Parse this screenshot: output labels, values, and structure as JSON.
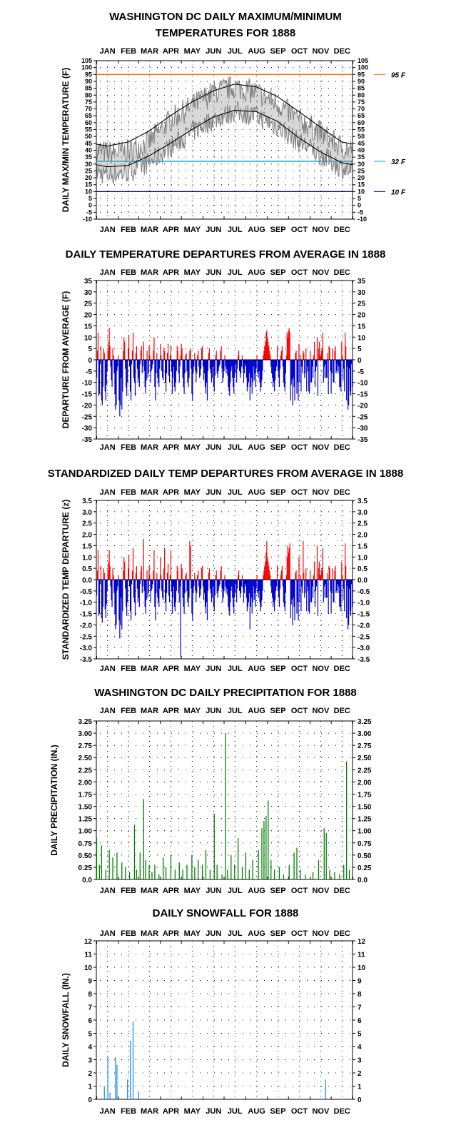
{
  "colors": {
    "positive": "#ff0000",
    "negative": "#0000cc",
    "precip": "#008000",
    "snow": "#1e90ff",
    "daily_temp": "#808080",
    "normals": "#000000",
    "ref95": "#ff6600",
    "ref32": "#00a0d0",
    "ref10": "#0000aa"
  },
  "chart_data": [
    {
      "id": "temp",
      "type": "line",
      "title": "WASHINGTON DC DAILY MAXIMUM/MINIMUM TEMPERATURES FOR 1888",
      "title_lines": [
        "WASHINGTON DC DAILY MAXIMUM/MINIMUM",
        "TEMPERATURES FOR 1888"
      ],
      "ylabel": "DAILY MAX/MIN TEMPERATURE (F)",
      "months": [
        "JAN",
        "FEB",
        "MAR",
        "APR",
        "MAY",
        "JUN",
        "JUL",
        "AUG",
        "SEP",
        "OCT",
        "NOV",
        "DEC"
      ],
      "ylim": [
        -10,
        105
      ],
      "yticks": [
        -10,
        -5,
        0,
        5,
        10,
        15,
        20,
        25,
        30,
        35,
        40,
        45,
        50,
        55,
        60,
        65,
        70,
        75,
        80,
        85,
        90,
        95,
        100,
        105
      ],
      "grid": true,
      "reference_lines": [
        {
          "value": 95,
          "label": "95 F"
        },
        {
          "value": 32,
          "label": "32 F"
        },
        {
          "value": 10,
          "label": "10 F"
        }
      ],
      "normal_max_monthly": [
        43,
        46,
        54,
        65,
        75,
        83,
        88,
        86,
        79,
        68,
        57,
        46
      ],
      "normal_min_monthly": [
        28,
        29,
        36,
        45,
        55,
        64,
        69,
        68,
        61,
        49,
        39,
        31
      ],
      "daily_high_monthly": [
        38,
        39,
        46,
        62,
        72,
        82,
        86,
        82,
        74,
        62,
        53,
        42
      ],
      "daily_low_monthly": [
        22,
        24,
        31,
        42,
        53,
        62,
        68,
        65,
        57,
        46,
        37,
        27
      ],
      "extremes": {
        "max_high": 95,
        "min_low": 10
      }
    },
    {
      "id": "dep",
      "type": "bar",
      "title": "DAILY TEMPERATURE DEPARTURES FROM AVERAGE IN 1888",
      "ylabel": "DEPARTURE FROM AVERAGE (F)",
      "months": [
        "JAN",
        "FEB",
        "MAR",
        "APR",
        "MAY",
        "JUN",
        "JUL",
        "AUG",
        "SEP",
        "OCT",
        "NOV",
        "DEC"
      ],
      "ylim": [
        -35,
        35
      ],
      "yticks": [
        -35,
        -30,
        -25,
        -20,
        -15,
        -10,
        -5,
        0,
        5,
        10,
        15,
        20,
        25,
        30,
        35
      ],
      "grid": true,
      "values": [
        -8,
        4,
        12,
        -16,
        -15,
        -2,
        6,
        -18,
        -20,
        -12,
        5,
        3,
        -14,
        -18,
        -11,
        -5,
        4,
        8,
        14,
        6,
        -3,
        -9,
        -12,
        5,
        2,
        -6,
        -15,
        -22,
        -20,
        -5,
        -3,
        2,
        -18,
        -25,
        -20,
        -8,
        -22,
        -14,
        4,
        10,
        8,
        -4,
        -12,
        -16,
        -10,
        5,
        11,
        -3,
        -14,
        -18,
        -2,
        4,
        12,
        -8,
        -10,
        -16,
        3,
        6,
        -4,
        -10,
        -8,
        -12,
        -2,
        4,
        6,
        -6,
        -3,
        8,
        -5,
        -12,
        -15,
        -9,
        4,
        -8,
        -6,
        6,
        2,
        -10,
        -5,
        -4,
        -2,
        4,
        10,
        -12,
        -18,
        -6,
        3,
        -8,
        -10,
        -12,
        -4,
        7,
        2,
        -5,
        -8,
        -9,
        5,
        4,
        -10,
        -14,
        -6,
        3,
        7,
        -7,
        -10,
        2,
        6,
        -5,
        -15,
        -8,
        -3,
        -12,
        -14,
        -10,
        -5,
        6,
        4,
        -6,
        -10,
        -3,
        2,
        7,
        5,
        -8,
        -12,
        -15,
        -6,
        2,
        3,
        -5,
        -10,
        -12,
        -8,
        4,
        5,
        -4,
        -15,
        -18,
        -6,
        -3,
        3,
        -5,
        -10,
        -6,
        2,
        4,
        -3,
        -8,
        -7,
        -4,
        5,
        6,
        -3,
        -9,
        -6,
        -12,
        -15,
        -10,
        -18,
        -5,
        3,
        5,
        -4,
        -6,
        -10,
        -8,
        -3,
        -12,
        -14,
        -7,
        2,
        4,
        -6,
        -8,
        -5,
        -3,
        -2,
        4,
        6,
        -4,
        -10,
        -8,
        -5,
        2,
        -3,
        -6,
        -4,
        -7,
        -12,
        -14,
        -16,
        -10,
        -5,
        -3,
        -8,
        -12,
        -15,
        -8,
        -6,
        -2,
        -10,
        -4,
        2,
        4,
        -5,
        -8,
        -6,
        -3,
        2,
        -4,
        -10,
        -6,
        -2,
        -3,
        -8,
        -14,
        -12,
        -10,
        -6,
        -18,
        -12,
        -8,
        -15,
        -10,
        -3,
        -9,
        -6,
        -12,
        -4,
        2,
        -6,
        -8,
        -5,
        -10,
        -14,
        -12,
        -9,
        -5,
        2,
        4,
        6,
        8,
        12,
        13,
        10,
        8,
        6,
        4,
        2,
        -3,
        -6,
        -8,
        -12,
        -10,
        -14,
        -9,
        -5,
        -3,
        6,
        -5,
        -8,
        -12,
        -4,
        2,
        4,
        6,
        -3,
        -10,
        -12,
        -14,
        -6,
        2,
        12,
        10,
        13,
        14,
        12
      ]
    },
    {
      "id": "std",
      "type": "bar",
      "title": "STANDARDIZED DAILY TEMP DEPARTURES FROM AVERAGE IN 1888",
      "ylabel": "STANDARDIZED TEMP DEPARTURE (z)",
      "months": [
        "JAN",
        "FEB",
        "MAR",
        "APR",
        "MAY",
        "JUN",
        "JUL",
        "AUG",
        "SEP",
        "OCT",
        "NOV",
        "DEC"
      ],
      "ylim": [
        -3.5,
        3.5
      ],
      "yticks": [
        -3.5,
        -3.0,
        -2.5,
        -2.0,
        -1.5,
        -1.0,
        -0.5,
        0.0,
        0.5,
        1.0,
        1.5,
        2.0,
        2.5,
        3.0,
        3.5
      ],
      "grid": true,
      "values": [
        -0.7,
        0.4,
        1.3,
        -1.6,
        -1.5,
        -0.2,
        0.6,
        -1.7,
        -1.9,
        -1.2,
        0.5,
        0.3,
        -1.3,
        -1.7,
        -1.1,
        -0.5,
        0.4,
        0.8,
        1.3,
        0.6,
        -0.3,
        -0.9,
        -1.2,
        0.5,
        0.2,
        -0.6,
        -1.5,
        -2.2,
        -2.0,
        -0.5,
        -0.3,
        0.2,
        -1.8,
        -2.6,
        -2.0,
        -0.8,
        -2.2,
        -1.4,
        0.4,
        1.0,
        0.8,
        -0.4,
        -1.2,
        -1.6,
        -1.0,
        0.5,
        1.1,
        -0.3,
        -1.4,
        -1.8,
        -0.2,
        0.4,
        1.4,
        -0.8,
        -1.0,
        -1.6,
        0.3,
        0.6,
        -0.4,
        -1.0,
        -0.8,
        -1.2,
        -0.2,
        0.4,
        0.6,
        -0.6,
        -0.3,
        1.8,
        -0.5,
        -1.2,
        -1.5,
        -0.9,
        0.4,
        -0.8,
        -0.6,
        0.6,
        0.2,
        -1.0,
        -0.5,
        -0.4,
        -0.2,
        0.4,
        1.3,
        -1.2,
        -1.8,
        -0.6,
        0.3,
        -0.8,
        -1.0,
        -1.2,
        -0.4,
        1.0,
        0.2,
        -0.5,
        -0.8,
        -0.9,
        0.5,
        1.4,
        -1.0,
        -1.4,
        -0.6,
        0.3,
        0.7,
        -0.7,
        -1.0,
        0.2,
        1.3,
        -0.5,
        -1.5,
        -0.8,
        -0.3,
        -1.2,
        -1.4,
        -1.0,
        -0.5,
        0.6,
        0.4,
        -0.6,
        -1.0,
        -0.3,
        -3.4,
        0.7,
        0.5,
        -0.8,
        -1.2,
        -1.5,
        -0.6,
        0.2,
        0.3,
        -0.5,
        -1.0,
        -1.2,
        -0.8,
        1.7,
        1.5,
        -0.4,
        -1.5,
        -1.8,
        -0.6,
        -0.3,
        0.3,
        -0.5,
        -1.0,
        -0.6,
        0.2,
        0.4,
        -0.3,
        -0.8,
        -0.7,
        -0.4,
        0.5,
        0.6,
        -0.3,
        -0.9,
        -0.6,
        -1.2,
        -1.5,
        -1.0,
        -1.8,
        -0.5,
        0.3,
        0.5,
        -0.4,
        -0.6,
        -1.0,
        -0.8,
        -0.3,
        -1.2,
        -1.4,
        -0.7,
        0.2,
        0.4,
        -0.6,
        -0.8,
        -0.5,
        -0.3,
        -0.2,
        0.4,
        0.6,
        -0.4,
        -1.0,
        -0.8,
        -0.5,
        0.2,
        -0.3,
        -0.6,
        -0.4,
        -0.7,
        -1.2,
        -1.4,
        -1.6,
        -1.0,
        -0.5,
        -0.3,
        -0.8,
        -1.2,
        -1.5,
        -0.8,
        -0.6,
        -0.2,
        -1.0,
        -0.4,
        0.2,
        0.4,
        -0.5,
        -0.8,
        -0.6,
        -0.3,
        0.2,
        -0.4,
        -1.0,
        -0.6,
        -0.2,
        -0.3,
        -0.8,
        -1.4,
        -1.2,
        -1.0,
        -0.6,
        -2.2,
        -1.2,
        -0.8,
        -1.5,
        -1.0,
        -0.3,
        -0.9,
        -0.6,
        -1.2,
        -0.4,
        0.2,
        -0.6,
        -0.8,
        -0.5,
        -1.0,
        -1.4,
        -1.2,
        -0.9,
        -0.5,
        0.2,
        0.4,
        0.6,
        0.8,
        1.2,
        1.7,
        1.0,
        0.8,
        0.6,
        0.4,
        0.2,
        -0.3,
        -0.6,
        -0.8,
        -1.2,
        -1.0,
        -1.4,
        -0.9,
        -0.5,
        -0.3,
        0.6,
        -0.5,
        -0.8,
        -1.2,
        -0.4,
        0.2,
        0.4,
        0.6,
        -0.3,
        -1.0,
        -1.2,
        -1.4,
        -0.6,
        0.2,
        1.0,
        1.5,
        1.2,
        1.4,
        1.6
      ]
    },
    {
      "id": "precip",
      "type": "bar",
      "title": "WASHINGTON DC DAILY PRECIPITATION FOR 1888",
      "ylabel": "DAILY PRECIPITATION (IN.)",
      "months": [
        "JAN",
        "FEB",
        "MAR",
        "APR",
        "MAY",
        "JUN",
        "JUL",
        "AUG",
        "SEP",
        "OCT",
        "NOV",
        "DEC"
      ],
      "ylim": [
        0,
        3.25
      ],
      "yticks": [
        0.0,
        0.25,
        0.5,
        0.75,
        1.0,
        1.25,
        1.5,
        1.75,
        2.0,
        2.25,
        2.5,
        2.75,
        3.0,
        3.25
      ],
      "ytick_labels": [
        "0.0",
        "0.25",
        "0.50",
        "0.75",
        "1.00",
        "1.25",
        "1.50",
        "1.75",
        "2.00",
        "2.25",
        "2.50",
        "2.75",
        "3.00",
        "3.25"
      ],
      "grid": true,
      "events": [
        {
          "day": 1,
          "value": 0.85
        },
        {
          "day": 5,
          "value": 0.3
        },
        {
          "day": 8,
          "value": 0.7
        },
        {
          "day": 14,
          "value": 0.2
        },
        {
          "day": 19,
          "value": 0.6
        },
        {
          "day": 24,
          "value": 0.45
        },
        {
          "day": 30,
          "value": 0.55
        },
        {
          "day": 37,
          "value": 0.35
        },
        {
          "day": 42,
          "value": 0.25
        },
        {
          "day": 48,
          "value": 0.15
        },
        {
          "day": 55,
          "value": 1.12
        },
        {
          "day": 58,
          "value": 0.2
        },
        {
          "day": 63,
          "value": 0.55
        },
        {
          "day": 68,
          "value": 1.65
        },
        {
          "day": 71,
          "value": 0.4
        },
        {
          "day": 76,
          "value": 0.3
        },
        {
          "day": 80,
          "value": 0.15
        },
        {
          "day": 84,
          "value": 0.3
        },
        {
          "day": 90,
          "value": 0.1
        },
        {
          "day": 96,
          "value": 0.45
        },
        {
          "day": 100,
          "value": 0.25
        },
        {
          "day": 107,
          "value": 0.5
        },
        {
          "day": 113,
          "value": 0.2
        },
        {
          "day": 119,
          "value": 0.35
        },
        {
          "day": 124,
          "value": 0.2
        },
        {
          "day": 130,
          "value": 0.3
        },
        {
          "day": 137,
          "value": 0.5
        },
        {
          "day": 141,
          "value": 0.25
        },
        {
          "day": 146,
          "value": 0.4
        },
        {
          "day": 152,
          "value": 0.3
        },
        {
          "day": 157,
          "value": 0.6
        },
        {
          "day": 163,
          "value": 0.2
        },
        {
          "day": 169,
          "value": 1.35
        },
        {
          "day": 173,
          "value": 0.3
        },
        {
          "day": 180,
          "value": 0.1
        },
        {
          "day": 185,
          "value": 3.0
        },
        {
          "day": 188,
          "value": 0.2
        },
        {
          "day": 193,
          "value": 0.5
        },
        {
          "day": 198,
          "value": 0.3
        },
        {
          "day": 203,
          "value": 0.85
        },
        {
          "day": 209,
          "value": 0.25
        },
        {
          "day": 214,
          "value": 0.55
        },
        {
          "day": 219,
          "value": 0.2
        },
        {
          "day": 224,
          "value": 0.4
        },
        {
          "day": 232,
          "value": 0.6
        },
        {
          "day": 237,
          "value": 1.05
        },
        {
          "day": 240,
          "value": 1.2
        },
        {
          "day": 243,
          "value": 1.3
        },
        {
          "day": 246,
          "value": 1.62
        },
        {
          "day": 250,
          "value": 0.4
        },
        {
          "day": 255,
          "value": 0.2
        },
        {
          "day": 262,
          "value": 0.25
        },
        {
          "day": 268,
          "value": 0.1
        },
        {
          "day": 276,
          "value": 0.3
        },
        {
          "day": 283,
          "value": 0.55
        },
        {
          "day": 287,
          "value": 0.65
        },
        {
          "day": 292,
          "value": 0.2
        },
        {
          "day": 299,
          "value": 0.1
        },
        {
          "day": 310,
          "value": 0.15
        },
        {
          "day": 318,
          "value": 0.4
        },
        {
          "day": 326,
          "value": 1.05
        },
        {
          "day": 329,
          "value": 0.95
        },
        {
          "day": 334,
          "value": 0.2
        },
        {
          "day": 341,
          "value": 0.15
        },
        {
          "day": 348,
          "value": 0.1
        },
        {
          "day": 354,
          "value": 0.3
        },
        {
          "day": 358,
          "value": 2.42
        },
        {
          "day": 362,
          "value": 0.2
        }
      ]
    },
    {
      "id": "snow",
      "type": "bar",
      "title": "DAILY SNOWFALL FOR 1888",
      "ylabel": "DAILY SNOWFALL (IN.)",
      "months": [
        "JAN",
        "FEB",
        "MAR",
        "APR",
        "MAY",
        "JUN",
        "JUL",
        "AUG",
        "SEP",
        "OCT",
        "NOV",
        "DEC"
      ],
      "ylim": [
        0,
        12
      ],
      "yticks": [
        0,
        1,
        2,
        3,
        4,
        5,
        6,
        7,
        8,
        9,
        10,
        11,
        12
      ],
      "grid": true,
      "events": [
        {
          "day": 12,
          "value": 1.0
        },
        {
          "day": 17,
          "value": 3.2
        },
        {
          "day": 20,
          "value": 0.5
        },
        {
          "day": 28,
          "value": 3.2
        },
        {
          "day": 30,
          "value": 2.6
        },
        {
          "day": 45,
          "value": 1.5
        },
        {
          "day": 49,
          "value": 4.4
        },
        {
          "day": 53,
          "value": 5.9
        },
        {
          "day": 61,
          "value": 0.6
        },
        {
          "day": 328,
          "value": 1.5
        }
      ]
    }
  ]
}
